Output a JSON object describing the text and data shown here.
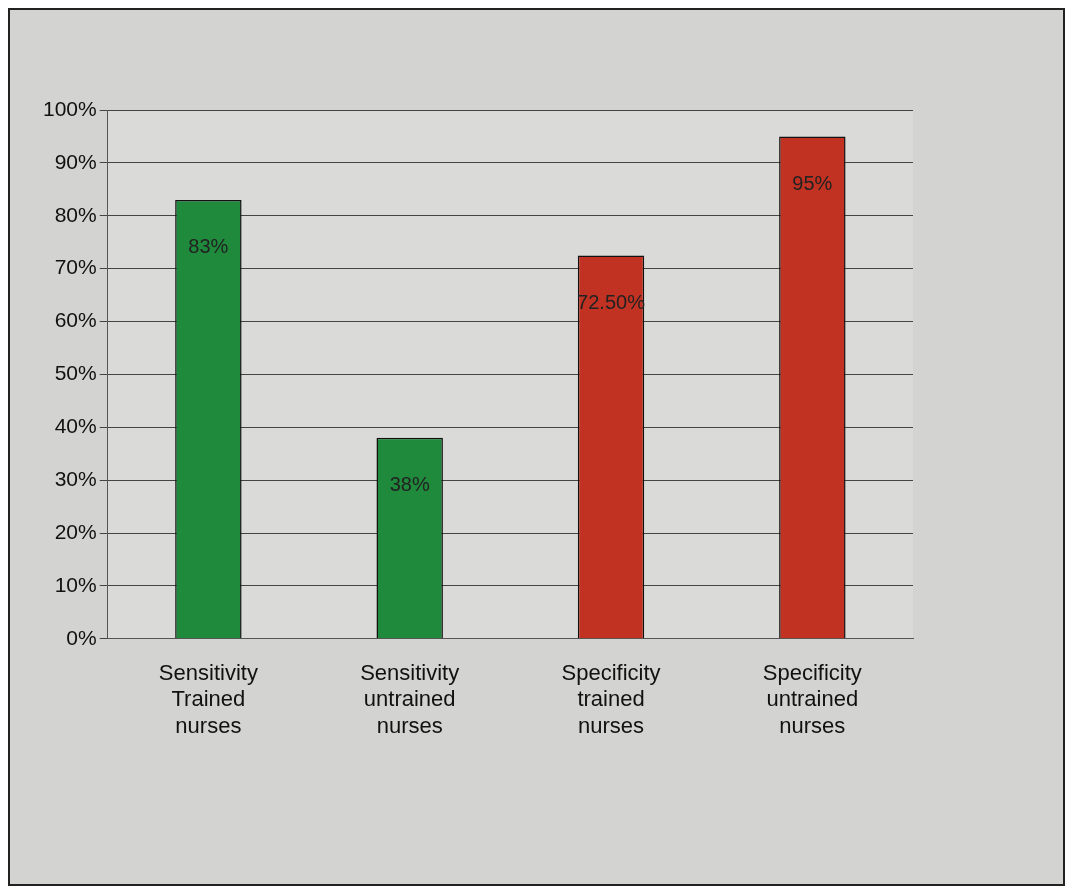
{
  "chart_data": {
    "type": "bar",
    "categories": [
      "Sensitivity Trained nurses",
      "Sensitivity untrained nurses",
      "Specificity trained nurses",
      "Specificity untrained nurses"
    ],
    "values": [
      83,
      38,
      72.5,
      95
    ],
    "colors": [
      "#1f8a3c",
      "#1f8a3c",
      "#c23222",
      "#c23222"
    ],
    "value_labels": [
      "83%",
      "38%",
      "72.50%",
      "95%"
    ],
    "ylim": [
      0,
      100
    ],
    "yticks": [
      {
        "value": 0,
        "label": "0%"
      },
      {
        "value": 10,
        "label": "10%"
      },
      {
        "value": 20,
        "label": "20%"
      },
      {
        "value": 30,
        "label": "30%"
      },
      {
        "value": 40,
        "label": "40%"
      },
      {
        "value": 50,
        "label": "50%"
      },
      {
        "value": 60,
        "label": "60%"
      },
      {
        "value": 70,
        "label": "70%"
      },
      {
        "value": 80,
        "label": "80%"
      },
      {
        "value": 90,
        "label": "90%"
      },
      {
        "value": 100,
        "label": "100%"
      }
    ],
    "grid": "y",
    "legend": false
  }
}
